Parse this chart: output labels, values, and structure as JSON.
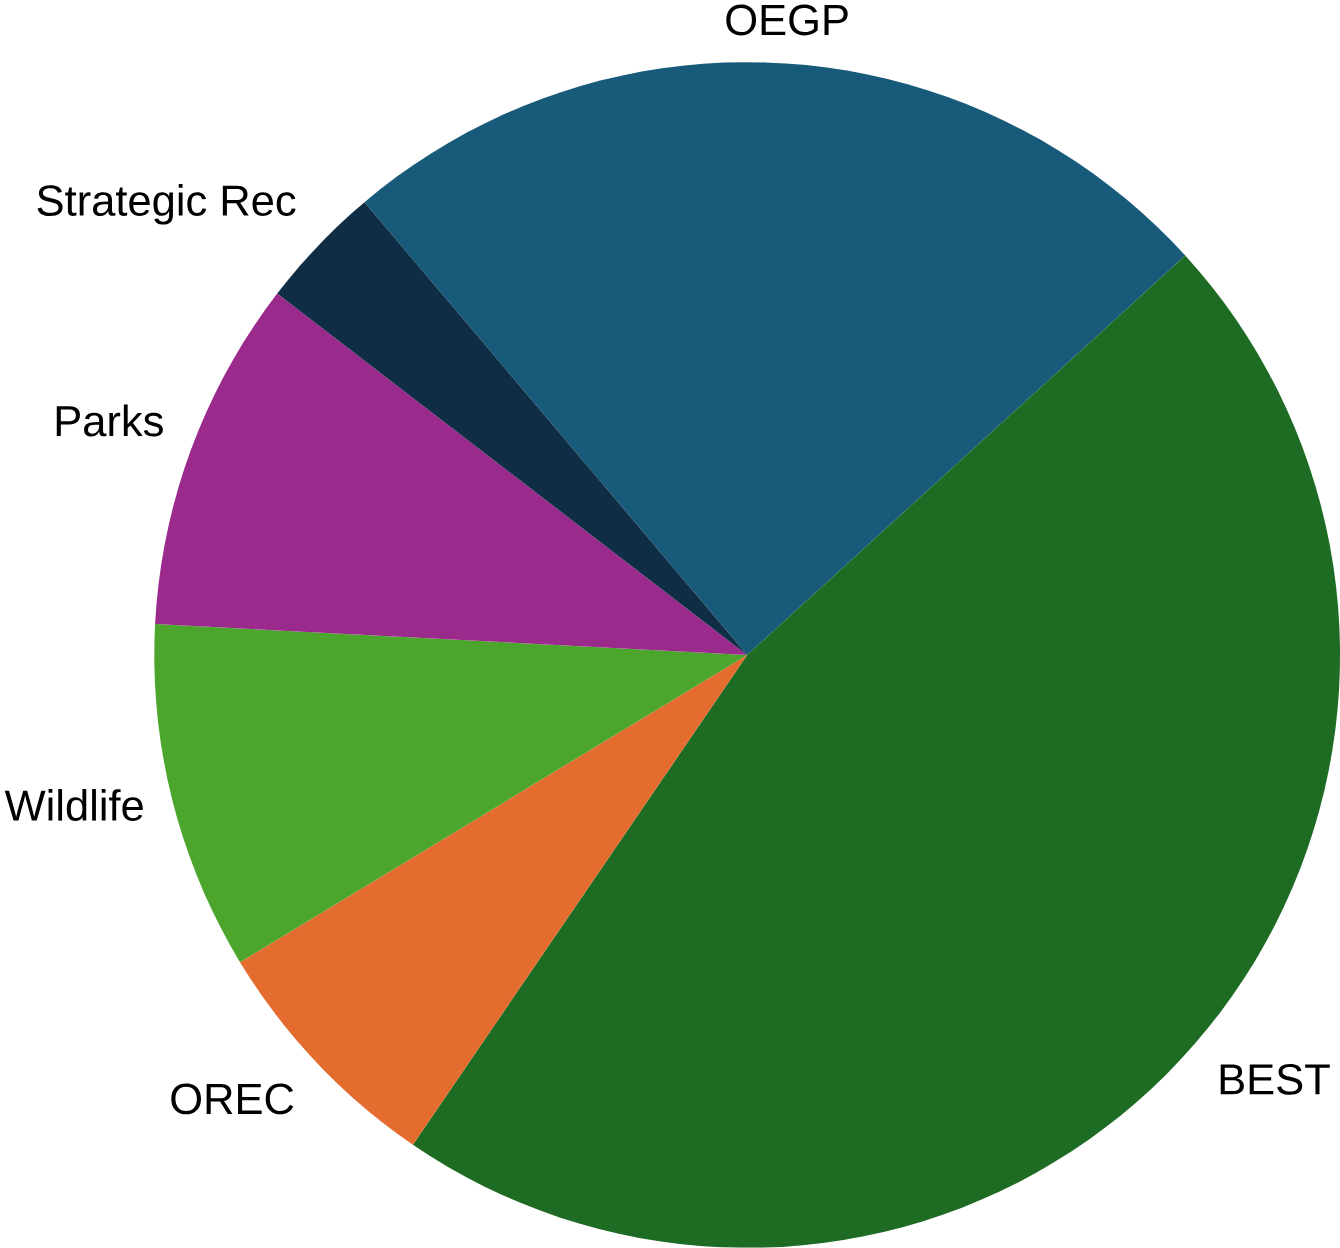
{
  "chart_data": {
    "type": "pie",
    "categories": [
      "OEGP",
      "BEST",
      "OREC",
      "Wildlife",
      "Parks",
      "Strategic Rec"
    ],
    "values": [
      24.4,
      46.3,
      6.8,
      9.5,
      9.6,
      3.4
    ],
    "colors": [
      "#175a7a",
      "#1e6b24",
      "#e36c2e",
      "#4ca62e",
      "#9a2a8c",
      "#0f2d45"
    ]
  }
}
